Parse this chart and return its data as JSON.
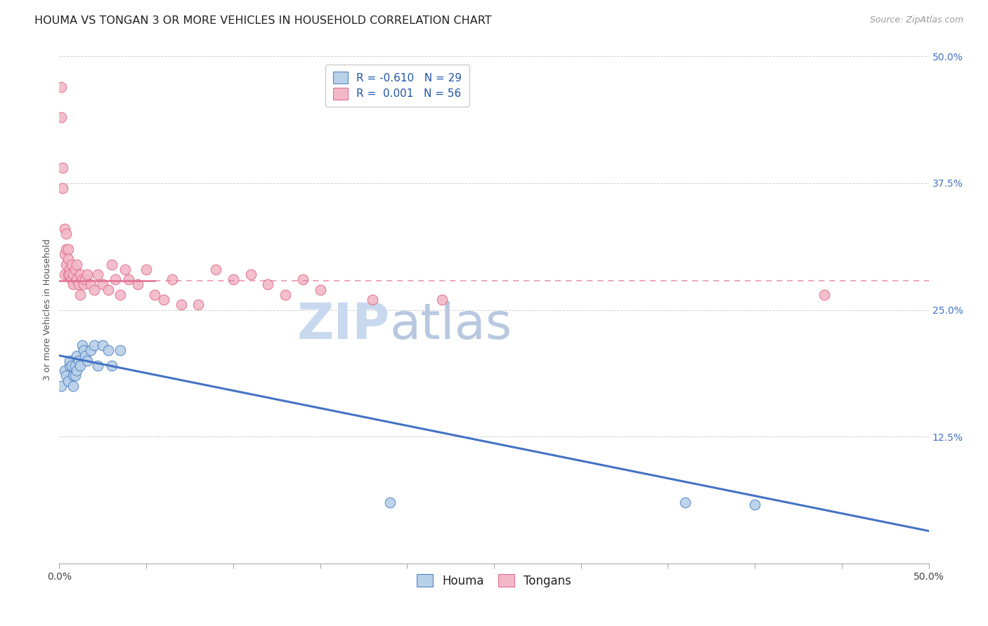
{
  "title": "HOUMA VS TONGAN 3 OR MORE VEHICLES IN HOUSEHOLD CORRELATION CHART",
  "source": "Source: ZipAtlas.com",
  "ylabel": "3 or more Vehicles in Household",
  "xlim": [
    0.0,
    0.5
  ],
  "ylim": [
    0.0,
    0.5
  ],
  "legend_r_houma": "-0.610",
  "legend_n_houma": "29",
  "legend_r_tongan": "0.001",
  "legend_n_tongan": "56",
  "houma_fill_color": "#b8d0e8",
  "tongan_fill_color": "#f2b8c8",
  "houma_edge_color": "#5585c5",
  "tongan_edge_color": "#e07090",
  "houma_line_color": "#4472c4",
  "tongan_line_color": "#e07090",
  "watermark_zip": "ZIP",
  "watermark_atlas": "atlas",
  "grid_color": "#cccccc",
  "background_color": "#ffffff",
  "title_fontsize": 11.5,
  "axis_label_fontsize": 9,
  "tick_fontsize": 10,
  "legend_fontsize": 11,
  "watermark_fontsize_zip": 52,
  "watermark_fontsize_atlas": 52,
  "watermark_color_zip": "#c8d8ee",
  "watermark_color_atlas": "#b8c8e0",
  "source_fontsize": 9,
  "houma_scatter_x": [
    0.001,
    0.003,
    0.004,
    0.005,
    0.006,
    0.006,
    0.007,
    0.008,
    0.008,
    0.009,
    0.009,
    0.01,
    0.01,
    0.011,
    0.012,
    0.013,
    0.014,
    0.015,
    0.016,
    0.018,
    0.02,
    0.022,
    0.025,
    0.028,
    0.03,
    0.035,
    0.19,
    0.36,
    0.4
  ],
  "houma_scatter_y": [
    0.175,
    0.19,
    0.185,
    0.18,
    0.195,
    0.2,
    0.195,
    0.185,
    0.175,
    0.195,
    0.185,
    0.205,
    0.19,
    0.2,
    0.195,
    0.215,
    0.21,
    0.205,
    0.2,
    0.21,
    0.215,
    0.195,
    0.215,
    0.21,
    0.195,
    0.21,
    0.06,
    0.06,
    0.058
  ],
  "tongan_scatter_x": [
    0.001,
    0.001,
    0.002,
    0.002,
    0.003,
    0.003,
    0.003,
    0.004,
    0.004,
    0.004,
    0.005,
    0.005,
    0.005,
    0.006,
    0.006,
    0.007,
    0.007,
    0.008,
    0.008,
    0.009,
    0.01,
    0.01,
    0.011,
    0.012,
    0.012,
    0.013,
    0.014,
    0.015,
    0.016,
    0.018,
    0.02,
    0.022,
    0.025,
    0.028,
    0.03,
    0.032,
    0.035,
    0.038,
    0.04,
    0.045,
    0.05,
    0.055,
    0.06,
    0.065,
    0.07,
    0.08,
    0.09,
    0.1,
    0.11,
    0.12,
    0.13,
    0.14,
    0.15,
    0.18,
    0.22,
    0.44
  ],
  "tongan_scatter_y": [
    0.47,
    0.44,
    0.39,
    0.37,
    0.33,
    0.305,
    0.285,
    0.295,
    0.31,
    0.325,
    0.285,
    0.31,
    0.3,
    0.29,
    0.285,
    0.28,
    0.295,
    0.285,
    0.275,
    0.29,
    0.28,
    0.295,
    0.275,
    0.285,
    0.265,
    0.28,
    0.275,
    0.28,
    0.285,
    0.275,
    0.27,
    0.285,
    0.275,
    0.27,
    0.295,
    0.28,
    0.265,
    0.29,
    0.28,
    0.275,
    0.29,
    0.265,
    0.26,
    0.28,
    0.255,
    0.255,
    0.29,
    0.28,
    0.285,
    0.275,
    0.265,
    0.28,
    0.27,
    0.26,
    0.26,
    0.265
  ],
  "houma_line_x0": 0.0,
  "houma_line_x1": 0.5,
  "houma_line_y0": 0.205,
  "houma_line_y1": 0.032,
  "tongan_line_y": 0.279,
  "tongan_line_x_solid_end": 0.055,
  "tongan_line_x_dash_start": 0.055,
  "tongan_line_x_dash_end": 0.5
}
